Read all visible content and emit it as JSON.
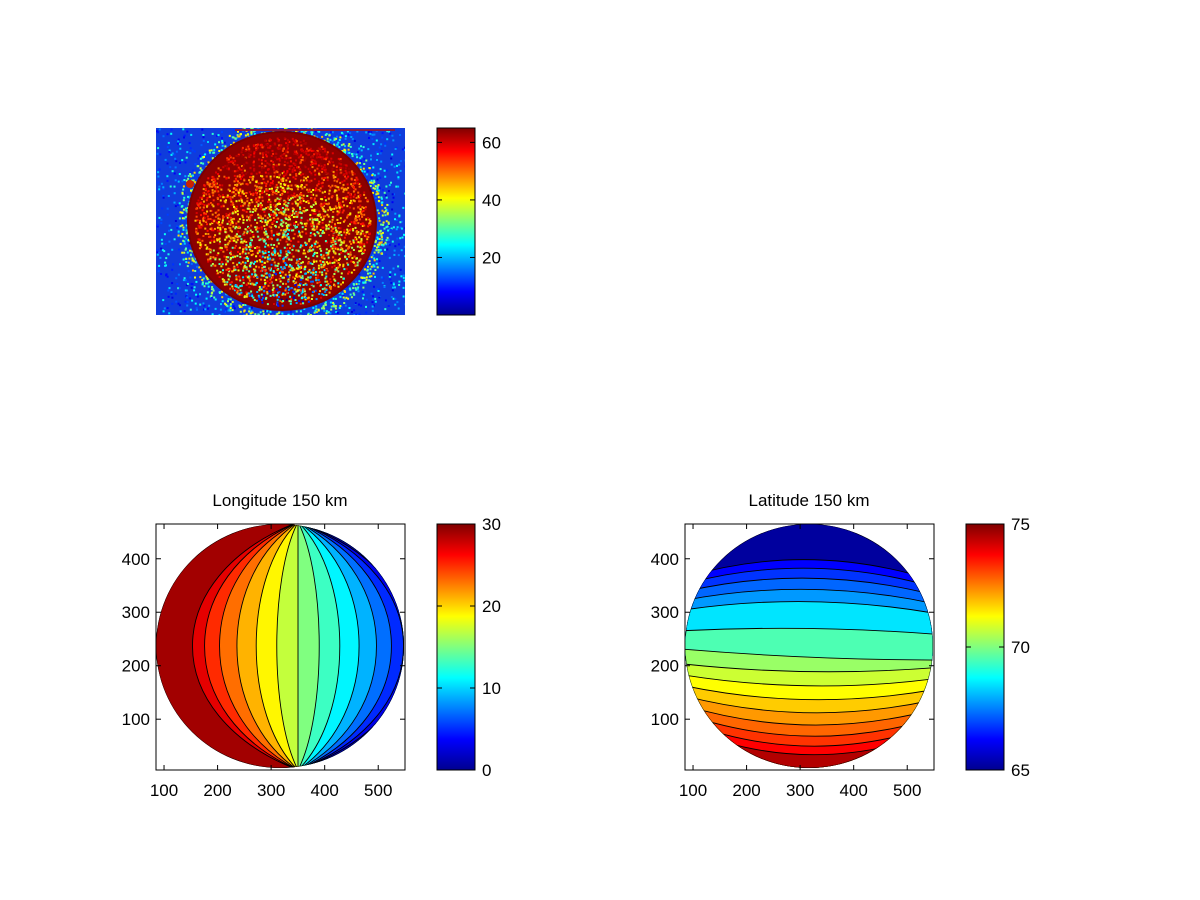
{
  "chart_data": [
    {
      "type": "heatmap",
      "title": "",
      "xlabel": "",
      "ylabel": "",
      "colormap": "jet",
      "axes_visible": false,
      "colorbar": {
        "min": 0,
        "max": 65,
        "ticks": [
          20,
          40,
          60
        ],
        "tick_labels": [
          "20",
          "40",
          "60"
        ]
      },
      "description_values": {
        "disk_edge_value": 63,
        "disk_center_value_range": [
          30,
          55
        ],
        "background_value_range": [
          5,
          25
        ]
      }
    },
    {
      "type": "heatmap",
      "title": "Longitude 150 km",
      "xlabel": "",
      "ylabel": "",
      "colormap": "jet",
      "contour_lines": true,
      "xlim": [
        85,
        550
      ],
      "ylim": [
        5,
        465
      ],
      "xticks": [
        100,
        200,
        300,
        400,
        500
      ],
      "xtick_labels": [
        "100",
        "200",
        "300",
        "400",
        "500"
      ],
      "yticks": [
        100,
        200,
        300,
        400
      ],
      "ytick_labels": [
        "100",
        "200",
        "300",
        "400"
      ],
      "colorbar": {
        "min": 0,
        "max": 30,
        "ticks": [
          0,
          10,
          20,
          30
        ],
        "tick_labels": [
          "0",
          "10",
          "20",
          "30"
        ]
      },
      "contour_levels": [
        2,
        4,
        6,
        8,
        10,
        12,
        14,
        16,
        18,
        20,
        22,
        24,
        26,
        28
      ]
    },
    {
      "type": "heatmap",
      "title": "Latitude 150 km",
      "xlabel": "",
      "ylabel": "",
      "colormap": "jet",
      "contour_lines": true,
      "xlim": [
        85,
        550
      ],
      "ylim": [
        5,
        465
      ],
      "xticks": [
        100,
        200,
        300,
        400,
        500
      ],
      "xtick_labels": [
        "100",
        "200",
        "300",
        "400",
        "500"
      ],
      "yticks": [
        100,
        200,
        300,
        400
      ],
      "ytick_labels": [
        "100",
        "200",
        "300",
        "400"
      ],
      "colorbar": {
        "min": 65,
        "max": 75,
        "ticks": [
          65,
          70,
          75
        ],
        "tick_labels": [
          "65",
          "70",
          "75"
        ]
      },
      "contour_levels": [
        66,
        66.5,
        67,
        67.5,
        68,
        69,
        70,
        70.5,
        71,
        71.5,
        72,
        72.5,
        73,
        73.5,
        74
      ]
    }
  ]
}
